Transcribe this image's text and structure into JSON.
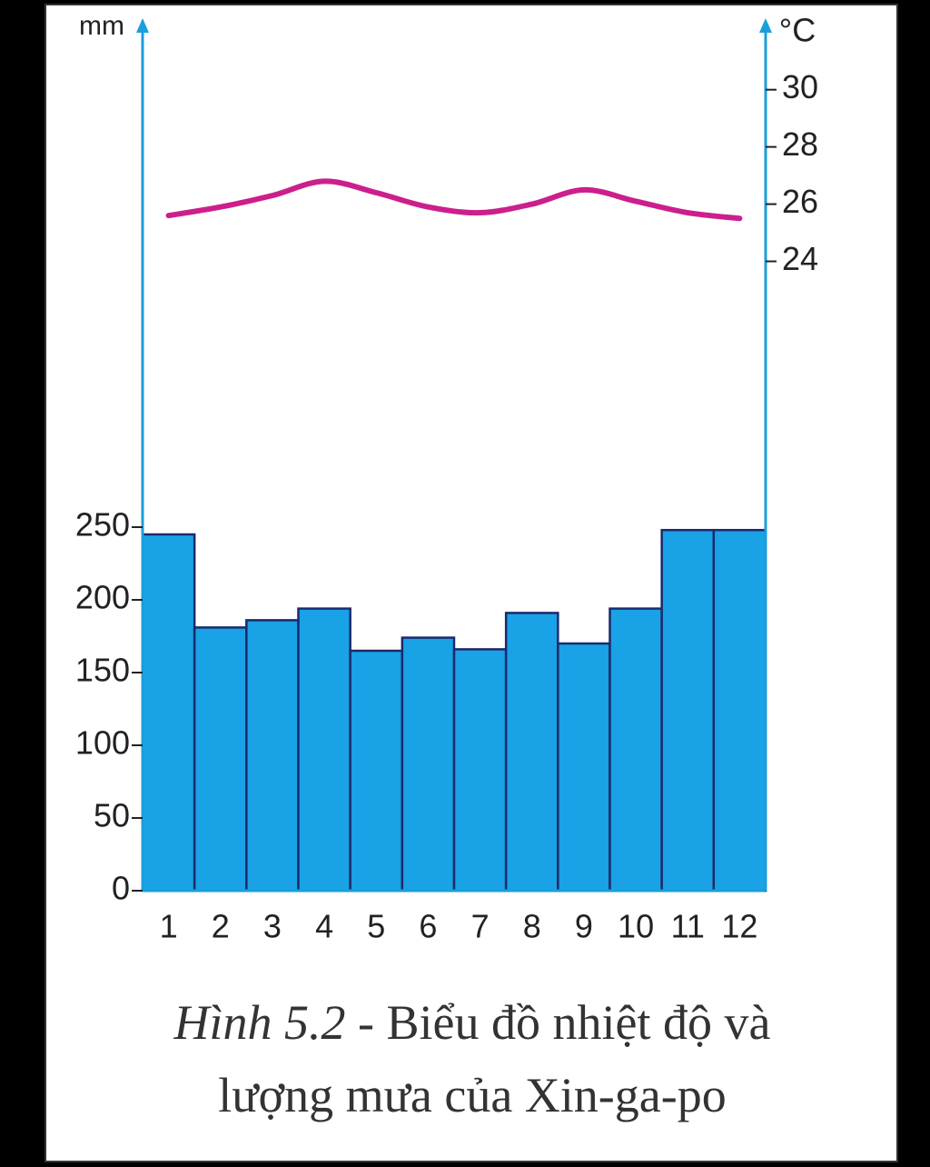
{
  "chart_data": {
    "type": "bar-line",
    "ylabel": "mm",
    "y2label": "°C",
    "figure_label": "Hình 5.2",
    "title": "- Biểu đồ nhiệt độ và lượng mưa của Xin-ga-po",
    "categories": [
      "1",
      "2",
      "3",
      "4",
      "5",
      "6",
      "7",
      "8",
      "9",
      "10",
      "11",
      "12"
    ],
    "series": [
      {
        "type": "bar",
        "color": "#19a2e6",
        "values": [
          245,
          181,
          186,
          194,
          165,
          174,
          166,
          191,
          170,
          194,
          248,
          248
        ]
      },
      {
        "type": "line",
        "axis": "y2",
        "color": "#cc1f8c",
        "values": [
          25.6,
          25.9,
          26.3,
          26.8,
          26.4,
          25.9,
          25.7,
          26.0,
          26.5,
          26.1,
          25.7,
          25.5
        ]
      }
    ],
    "ylim": [
      0,
      600
    ],
    "yticks": [
      0,
      50,
      100,
      150,
      200,
      250
    ],
    "y2lim": [
      2,
      32.5
    ],
    "y2ticks": [
      24,
      26,
      28,
      30
    ]
  }
}
